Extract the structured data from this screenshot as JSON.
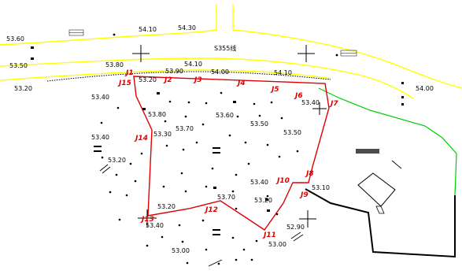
{
  "road_name": "S355线",
  "elevations": {
    "r1": "53.60",
    "r2": "54.10",
    "r3": "54.30",
    "r4": "53.50",
    "r5": "53.80",
    "r6": "54.10",
    "r7": "53.20",
    "r8": "53.20",
    "r9": "53.90",
    "r10": "54.00",
    "r11": "54.10",
    "r12": "54.00",
    "r13": "53.40",
    "p1": "53.40",
    "p2": "53.80",
    "p3": "53.70",
    "p4": "53.60",
    "p5": "53.50",
    "p6": "53.30",
    "p7": "53.50",
    "p8": "53.40",
    "p9": "53.20",
    "p10": "53.40",
    "p11": "53.70",
    "p12": "53.20",
    "p13": "53.10",
    "p14": "53.20",
    "p15": "52.90",
    "p16": "53.00",
    "p17": "53.00"
  },
  "boundary_points": {
    "j1": "J1",
    "j2": "J2",
    "j3": "J3",
    "j4": "J4",
    "j5": "J5",
    "j6": "J6",
    "j7": "J7",
    "j8": "J8",
    "j9": "J9",
    "j10": "J10",
    "j11": "J11",
    "j12": "J12",
    "j13": "J13",
    "j14": "J14",
    "j15": "J15"
  },
  "colors": {
    "road": "#ffff00",
    "boundary": "#e00000",
    "green_line": "#00cc00",
    "dark_line": "#000000"
  }
}
